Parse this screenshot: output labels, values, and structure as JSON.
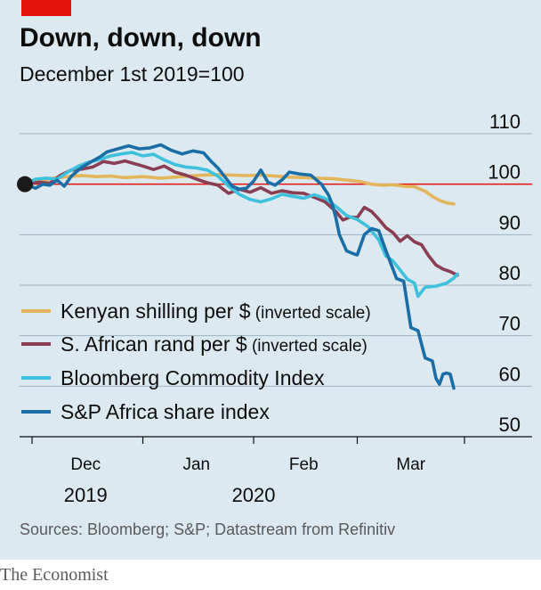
{
  "header": {
    "title": "Down, down, down",
    "subtitle": "December 1st 2019=100"
  },
  "footer": {
    "source": "Sources: Bloomberg; S&P; Datastream from Refinitiv",
    "brand": "The Economist"
  },
  "colors": {
    "background": "#dce9f1",
    "baseline": "#e3120b",
    "grid": "#9fb3c1",
    "tag": "#e3120b",
    "kenya": "#e3b55c",
    "rand": "#8a3e54",
    "bloomberg": "#3fc1dc",
    "sp": "#1a6ea5",
    "marker": "#1a1a1a"
  },
  "chart_data": {
    "type": "line",
    "ylim": [
      50,
      110
    ],
    "yticks": [
      110,
      100,
      90,
      80,
      70,
      60,
      50
    ],
    "baseline": 100,
    "x_ticks": [
      {
        "date": "2019-12-01",
        "label": ""
      },
      {
        "date": "2020-01-01",
        "label": ""
      },
      {
        "date": "2020-02-01",
        "label": ""
      },
      {
        "date": "2020-03-01",
        "label": ""
      },
      {
        "date": "2020-03-31",
        "label": ""
      }
    ],
    "x_month_labels": [
      {
        "date": "2019-12-16",
        "label": "Dec"
      },
      {
        "date": "2020-01-16",
        "label": "Jan"
      },
      {
        "date": "2020-02-15",
        "label": "Feb"
      },
      {
        "date": "2020-03-16",
        "label": "Mar"
      }
    ],
    "x_year_labels": [
      {
        "date": "2019-12-16",
        "label": "2019"
      },
      {
        "date": "2020-02-01",
        "label": "2020"
      }
    ],
    "start_marker": {
      "date": "2019-11-29",
      "value": 100
    },
    "series": [
      {
        "name": "Kenyan shilling per $",
        "note": "(inverted scale)",
        "color_key": "kenya",
        "points": [
          [
            "2019-11-29",
            100
          ],
          [
            "2019-12-03",
            100.6
          ],
          [
            "2019-12-07",
            101.2
          ],
          [
            "2019-12-11",
            101.5
          ],
          [
            "2019-12-15",
            101.7
          ],
          [
            "2019-12-19",
            101.5
          ],
          [
            "2019-12-23",
            101.6
          ],
          [
            "2019-12-27",
            101.3
          ],
          [
            "2020-01-01",
            101.5
          ],
          [
            "2020-01-06",
            101.2
          ],
          [
            "2020-01-10",
            101.4
          ],
          [
            "2020-01-14",
            101.6
          ],
          [
            "2020-01-18",
            101.8
          ],
          [
            "2020-01-22",
            101.9
          ],
          [
            "2020-01-26",
            101.8
          ],
          [
            "2020-01-30",
            101.7
          ],
          [
            "2020-02-03",
            101.8
          ],
          [
            "2020-02-07",
            101.6
          ],
          [
            "2020-02-11",
            101.4
          ],
          [
            "2020-02-15",
            101.3
          ],
          [
            "2020-02-19",
            101.2
          ],
          [
            "2020-02-23",
            101.1
          ],
          [
            "2020-02-27",
            100.8
          ],
          [
            "2020-03-02",
            100.5
          ],
          [
            "2020-03-05",
            100.0
          ],
          [
            "2020-03-08",
            99.8
          ],
          [
            "2020-03-11",
            99.9
          ],
          [
            "2020-03-14",
            99.6
          ],
          [
            "2020-03-17",
            99.5
          ],
          [
            "2020-03-20",
            98.6
          ],
          [
            "2020-03-22",
            97.6
          ],
          [
            "2020-03-24",
            96.8
          ],
          [
            "2020-03-26",
            96.3
          ],
          [
            "2020-03-28",
            96.1
          ]
        ]
      },
      {
        "name": "S. African rand per $",
        "note": "(inverted scale)",
        "color_key": "rand",
        "points": [
          [
            "2019-11-29",
            100
          ],
          [
            "2019-12-03",
            100.4
          ],
          [
            "2019-12-06",
            100.2
          ],
          [
            "2019-12-09",
            101.8
          ],
          [
            "2019-12-12",
            102.8
          ],
          [
            "2019-12-15",
            103.0
          ],
          [
            "2019-12-18",
            103.4
          ],
          [
            "2019-12-21",
            104.5
          ],
          [
            "2019-12-24",
            104.1
          ],
          [
            "2019-12-27",
            104.6
          ],
          [
            "2020-01-01",
            103.6
          ],
          [
            "2020-01-04",
            102.9
          ],
          [
            "2020-01-07",
            103.6
          ],
          [
            "2020-01-10",
            102.4
          ],
          [
            "2020-01-13",
            101.8
          ],
          [
            "2020-01-16",
            101.0
          ],
          [
            "2020-01-19",
            100.3
          ],
          [
            "2020-01-22",
            99.8
          ],
          [
            "2020-01-25",
            98.2
          ],
          [
            "2020-01-28",
            99.0
          ],
          [
            "2020-01-31",
            98.4
          ],
          [
            "2020-02-03",
            99.3
          ],
          [
            "2020-02-06",
            98.2
          ],
          [
            "2020-02-09",
            98.7
          ],
          [
            "2020-02-12",
            98.3
          ],
          [
            "2020-02-15",
            98.2
          ],
          [
            "2020-02-18",
            97.4
          ],
          [
            "2020-02-21",
            96.5
          ],
          [
            "2020-02-24",
            94.6
          ],
          [
            "2020-02-26",
            92.9
          ],
          [
            "2020-02-28",
            93.5
          ],
          [
            "2020-03-01",
            93.4
          ],
          [
            "2020-03-03",
            95.4
          ],
          [
            "2020-03-05",
            94.6
          ],
          [
            "2020-03-07",
            93.1
          ],
          [
            "2020-03-09",
            91.4
          ],
          [
            "2020-03-11",
            90.4
          ],
          [
            "2020-03-13",
            88.7
          ],
          [
            "2020-03-15",
            89.8
          ],
          [
            "2020-03-17",
            88.6
          ],
          [
            "2020-03-19",
            88.0
          ],
          [
            "2020-03-21",
            85.8
          ],
          [
            "2020-03-23",
            84.0
          ],
          [
            "2020-03-25",
            83.2
          ],
          [
            "2020-03-27",
            82.7
          ],
          [
            "2020-03-29",
            82.0
          ]
        ]
      },
      {
        "name": "Bloomberg Commodity Index",
        "note": "",
        "color_key": "bloomberg",
        "points": [
          [
            "2019-11-29",
            100
          ],
          [
            "2019-12-02",
            101.0
          ],
          [
            "2019-12-05",
            101.2
          ],
          [
            "2019-12-08",
            101.0
          ],
          [
            "2019-12-11",
            102.4
          ],
          [
            "2019-12-14",
            103.6
          ],
          [
            "2019-12-17",
            104.4
          ],
          [
            "2019-12-20",
            104.9
          ],
          [
            "2019-12-23",
            105.6
          ],
          [
            "2019-12-26",
            106.0
          ],
          [
            "2019-12-29",
            106.3
          ],
          [
            "2020-01-01",
            105.6
          ],
          [
            "2020-01-04",
            105.9
          ],
          [
            "2020-01-07",
            104.8
          ],
          [
            "2020-01-10",
            103.9
          ],
          [
            "2020-01-13",
            103.4
          ],
          [
            "2020-01-16",
            103.2
          ],
          [
            "2020-01-19",
            102.8
          ],
          [
            "2020-01-22",
            101.6
          ],
          [
            "2020-01-25",
            99.6
          ],
          [
            "2020-01-28",
            98.0
          ],
          [
            "2020-01-31",
            97.0
          ],
          [
            "2020-02-03",
            96.5
          ],
          [
            "2020-02-06",
            97.1
          ],
          [
            "2020-02-09",
            98.0
          ],
          [
            "2020-02-12",
            97.6
          ],
          [
            "2020-02-15",
            97.2
          ],
          [
            "2020-02-18",
            97.9
          ],
          [
            "2020-02-21",
            97.2
          ],
          [
            "2020-02-24",
            95.6
          ],
          [
            "2020-02-27",
            93.8
          ],
          [
            "2020-03-01",
            93.0
          ],
          [
            "2020-03-04",
            91.6
          ],
          [
            "2020-03-07",
            89.0
          ],
          [
            "2020-03-09",
            85.8
          ],
          [
            "2020-03-11",
            84.8
          ],
          [
            "2020-03-13",
            83.0
          ],
          [
            "2020-03-15",
            81.2
          ],
          [
            "2020-03-17",
            80.4
          ],
          [
            "2020-03-18",
            77.8
          ],
          [
            "2020-03-20",
            79.6
          ],
          [
            "2020-03-23",
            79.8
          ],
          [
            "2020-03-26",
            80.4
          ],
          [
            "2020-03-28",
            81.4
          ],
          [
            "2020-03-29",
            82.2
          ]
        ]
      },
      {
        "name": "S&P Africa share index",
        "note": "",
        "color_key": "sp",
        "points": [
          [
            "2019-11-29",
            100
          ],
          [
            "2019-12-02",
            99.2
          ],
          [
            "2019-12-04",
            100.0
          ],
          [
            "2019-12-06",
            99.8
          ],
          [
            "2019-12-08",
            100.8
          ],
          [
            "2019-12-10",
            99.6
          ],
          [
            "2019-12-12",
            101.6
          ],
          [
            "2019-12-15",
            103.4
          ],
          [
            "2019-12-18",
            104.6
          ],
          [
            "2019-12-20",
            105.4
          ],
          [
            "2019-12-22",
            106.4
          ],
          [
            "2019-12-25",
            107.0
          ],
          [
            "2019-12-28",
            107.6
          ],
          [
            "2019-12-31",
            107.0
          ],
          [
            "2020-01-03",
            107.2
          ],
          [
            "2020-01-06",
            107.8
          ],
          [
            "2020-01-09",
            106.7
          ],
          [
            "2020-01-12",
            106.0
          ],
          [
            "2020-01-15",
            106.6
          ],
          [
            "2020-01-18",
            106.2
          ],
          [
            "2020-01-20",
            104.6
          ],
          [
            "2020-01-22",
            103.2
          ],
          [
            "2020-01-24",
            101.4
          ],
          [
            "2020-01-26",
            99.6
          ],
          [
            "2020-01-28",
            99.0
          ],
          [
            "2020-01-30",
            99.2
          ],
          [
            "2020-02-01",
            100.6
          ],
          [
            "2020-02-03",
            102.8
          ],
          [
            "2020-02-05",
            100.4
          ],
          [
            "2020-02-07",
            99.8
          ],
          [
            "2020-02-09",
            100.9
          ],
          [
            "2020-02-11",
            102.4
          ],
          [
            "2020-02-14",
            102.0
          ],
          [
            "2020-02-17",
            101.8
          ],
          [
            "2020-02-20",
            100.0
          ],
          [
            "2020-02-22",
            97.8
          ],
          [
            "2020-02-23",
            96.0
          ],
          [
            "2020-02-24",
            93.4
          ],
          [
            "2020-02-25",
            90.0
          ],
          [
            "2020-02-27",
            86.8
          ],
          [
            "2020-02-29",
            86.2
          ],
          [
            "2020-03-01",
            86.0
          ],
          [
            "2020-03-03",
            90.0
          ],
          [
            "2020-03-05",
            91.2
          ],
          [
            "2020-03-07",
            90.8
          ],
          [
            "2020-03-09",
            86.9
          ],
          [
            "2020-03-10",
            85.0
          ],
          [
            "2020-03-12",
            81.3
          ],
          [
            "2020-03-14",
            80.8
          ],
          [
            "2020-03-16",
            71.6
          ],
          [
            "2020-03-18",
            71.0
          ],
          [
            "2020-03-20",
            65.6
          ],
          [
            "2020-03-22",
            65.0
          ],
          [
            "2020-03-23",
            61.6
          ],
          [
            "2020-03-24",
            60.4
          ],
          [
            "2020-03-25",
            62.4
          ],
          [
            "2020-03-26",
            62.6
          ],
          [
            "2020-03-27",
            62.4
          ],
          [
            "2020-03-28",
            59.6
          ]
        ]
      }
    ]
  }
}
